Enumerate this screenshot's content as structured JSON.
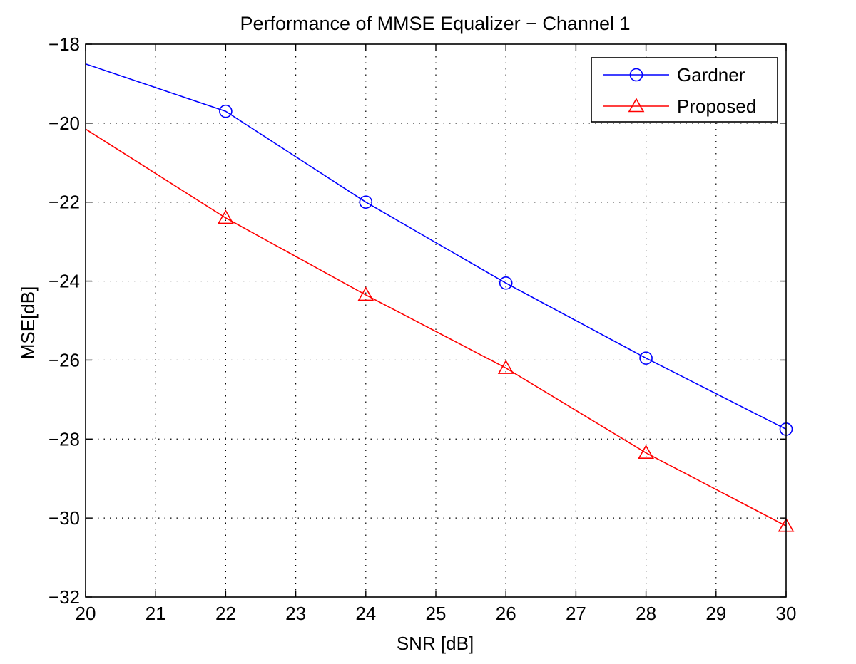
{
  "chart_data": {
    "type": "line",
    "title": "Performance of MMSE Equalizer − Channel 1",
    "xlabel": "SNR [dB]",
    "ylabel": "MSE[dB]",
    "xlim": [
      20,
      30
    ],
    "ylim": [
      -32,
      -18
    ],
    "xticks": [
      "20",
      "21",
      "22",
      "23",
      "24",
      "25",
      "26",
      "27",
      "28",
      "29",
      "30"
    ],
    "yticks": [
      "−18",
      "−20",
      "−22",
      "−24",
      "−26",
      "−28",
      "−30",
      "−32"
    ],
    "grid": true,
    "legend_position": "top-right",
    "series": [
      {
        "name": "Gardner",
        "color": "#0000ff",
        "marker": "circle",
        "x": [
          20,
          22,
          24,
          26,
          28,
          30
        ],
        "y": [
          -18.5,
          -19.7,
          -22.0,
          -24.05,
          -25.95,
          -27.75
        ]
      },
      {
        "name": "Proposed",
        "color": "#ff0000",
        "marker": "triangle",
        "x": [
          20,
          22,
          24,
          26,
          28,
          30
        ],
        "y": [
          -20.15,
          -22.4,
          -24.35,
          -26.2,
          -28.35,
          -30.2
        ]
      }
    ]
  }
}
